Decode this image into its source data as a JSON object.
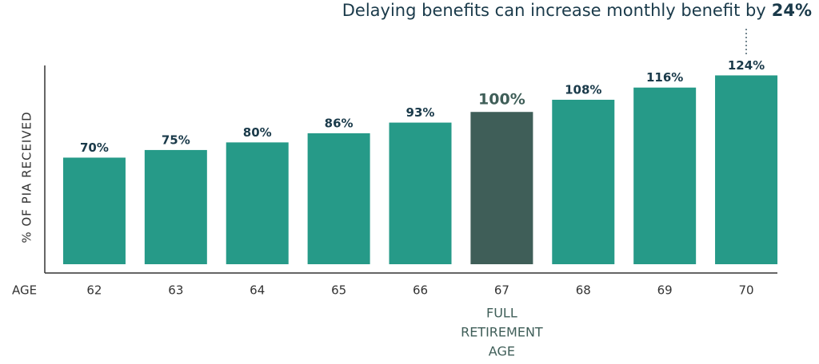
{
  "chart_data": {
    "type": "bar",
    "annotation": "Delaying benefits can increase monthly benefit by",
    "annotation_highlight": "24%",
    "y_label": "% OF PIA RECEIVED",
    "x_label": "AGE",
    "categories": [
      "62",
      "63",
      "64",
      "65",
      "66",
      "67",
      "68",
      "69",
      "70"
    ],
    "values": [
      70,
      75,
      80,
      86,
      93,
      100,
      108,
      116,
      124
    ],
    "value_labels": [
      "70%",
      "75%",
      "80%",
      "86%",
      "93%",
      "100%",
      "108%",
      "116%",
      "124%"
    ],
    "colors": [
      "#269a88",
      "#269a88",
      "#269a88",
      "#269a88",
      "#269a88",
      "#3f5e58",
      "#269a88",
      "#269a88",
      "#269a88"
    ],
    "highlight_color": "#3f5e58",
    "highlight_note": [
      "FULL",
      "RETIREMENT",
      "AGE"
    ],
    "ylim": [
      0,
      130
    ]
  }
}
